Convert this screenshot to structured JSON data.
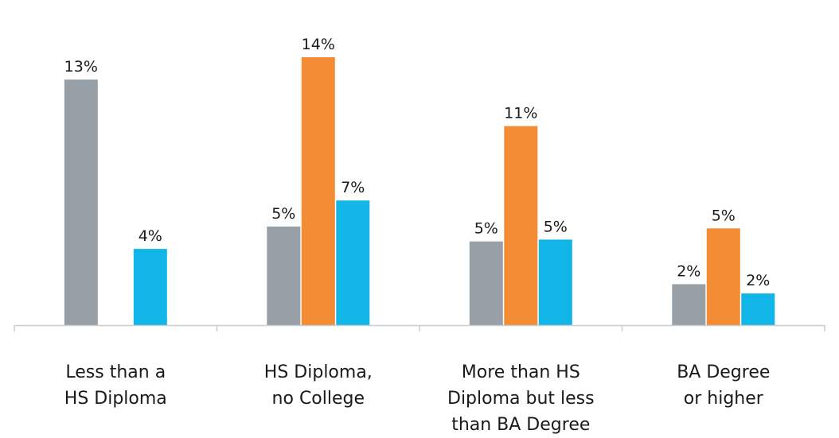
{
  "chart_data": {
    "type": "bar",
    "title": "",
    "xlabel": "",
    "ylabel": "",
    "categories": [
      [
        "Less than a",
        "HS Diploma"
      ],
      [
        "HS Diploma,",
        "no College"
      ],
      [
        "More than HS",
        "Diploma but less",
        "than BA Degree"
      ],
      [
        "BA Degree",
        "or higher"
      ]
    ],
    "series": [
      {
        "color": "#97a0a7",
        "values": [
          13.2,
          5.3,
          4.5,
          2.2
        ],
        "labels": [
          "13%",
          "5%",
          "5%",
          "2%"
        ]
      },
      {
        "color": "#f48c35",
        "values": [
          null,
          14.4,
          10.7,
          5.2
        ],
        "labels": [
          "",
          "14%",
          "11%",
          "5%"
        ]
      },
      {
        "color": "#12b5e8",
        "values": [
          4.1,
          6.7,
          4.6,
          1.7
        ],
        "labels": [
          "4%",
          "7%",
          "5%",
          "2%"
        ]
      }
    ],
    "ylim": [
      0,
      16
    ],
    "grid": false,
    "legend": "none"
  }
}
